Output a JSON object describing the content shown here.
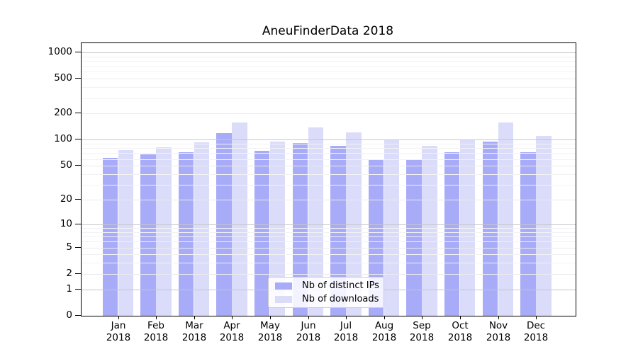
{
  "title": "AneuFinderData 2018",
  "legend": {
    "items": [
      {
        "label": "Nb of distinct IPs",
        "color": "#a8abf7"
      },
      {
        "label": "Nb of downloads",
        "color": "#dadcfa"
      }
    ]
  },
  "axis": {
    "y_tick_labels": [
      "1000",
      "500",
      "200",
      "100",
      "50",
      "20",
      "10",
      "5",
      "2",
      "1",
      "0"
    ],
    "x_year": "2018"
  },
  "chart_data": {
    "type": "bar",
    "title": "AneuFinderData 2018",
    "scale": "log10(value+1), 0 at baseline",
    "categories": [
      "Jan",
      "Feb",
      "Mar",
      "Apr",
      "May",
      "Jun",
      "Jul",
      "Aug",
      "Sep",
      "Oct",
      "Nov",
      "Dec"
    ],
    "x_tick_second_line": "2018",
    "series": [
      {
        "name": "Nb of distinct IPs",
        "color": "#a8abf7",
        "values": [
          62,
          68,
          72,
          120,
          75,
          92,
          85,
          59,
          59,
          72,
          95,
          72
        ]
      },
      {
        "name": "Nb of downloads",
        "color": "#dadcfa",
        "values": [
          76,
          82,
          93,
          158,
          95,
          140,
          122,
          99,
          86,
          99,
          158,
          110
        ]
      }
    ],
    "y_ticks": [
      1000,
      500,
      200,
      100,
      50,
      20,
      10,
      5,
      2,
      1,
      0
    ],
    "ylim": [
      0,
      1100
    ],
    "grid": "horizontal",
    "legend_position": "bottom-center-inside",
    "colors": {
      "grid_decade": "#c6c6c8",
      "grid_labeled": "#ebebee",
      "grid_minor": "#f2f2f4",
      "spine": "#000000"
    }
  }
}
